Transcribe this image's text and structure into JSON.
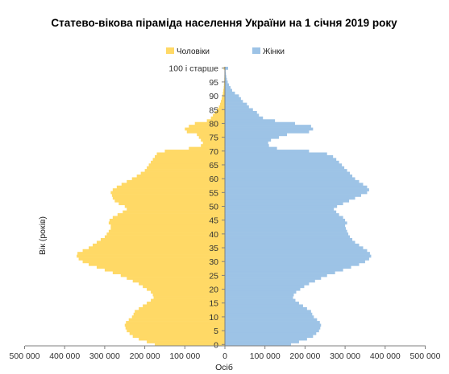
{
  "chart_data": {
    "type": "bar",
    "orientation": "horizontal",
    "title": "Статево-вікова піраміда населення України на 1 січня 2019 року",
    "xlabel": "Осіб",
    "ylabel": "Вік (років)",
    "xlim": [
      -500000,
      500000
    ],
    "x_ticks": [
      -500000,
      -400000,
      -300000,
      -200000,
      -100000,
      0,
      100000,
      200000,
      300000,
      400000,
      500000
    ],
    "x_tick_labels": [
      "500 000",
      "400 000",
      "300 000",
      "200 000",
      "100 000",
      "0",
      "100 000",
      "200 000",
      "300 000",
      "400 000",
      "500 000"
    ],
    "y_tick_ages": [
      0,
      5,
      10,
      15,
      20,
      25,
      30,
      35,
      40,
      45,
      50,
      55,
      60,
      65,
      70,
      75,
      80,
      85,
      90,
      95,
      100
    ],
    "y_tick_labels": [
      "0",
      "5",
      "10",
      "15",
      "20",
      "25",
      "30",
      "35",
      "40",
      "45",
      "50",
      "55",
      "60",
      "65",
      "70",
      "75",
      "80",
      "85",
      "90",
      "95",
      "100 і старше"
    ],
    "legend_position": "top-center",
    "grid": false,
    "ages": [
      0,
      1,
      2,
      3,
      4,
      5,
      6,
      7,
      8,
      9,
      10,
      11,
      12,
      13,
      14,
      15,
      16,
      17,
      18,
      19,
      20,
      21,
      22,
      23,
      24,
      25,
      26,
      27,
      28,
      29,
      30,
      31,
      32,
      33,
      34,
      35,
      36,
      37,
      38,
      39,
      40,
      41,
      42,
      43,
      44,
      45,
      46,
      47,
      48,
      49,
      50,
      51,
      52,
      53,
      54,
      55,
      56,
      57,
      58,
      59,
      60,
      61,
      62,
      63,
      64,
      65,
      66,
      67,
      68,
      69,
      70,
      71,
      72,
      73,
      74,
      75,
      76,
      77,
      78,
      79,
      80,
      81,
      82,
      83,
      84,
      85,
      86,
      87,
      88,
      89,
      90,
      91,
      92,
      93,
      94,
      95,
      96,
      97,
      98,
      99,
      100
    ],
    "series": [
      {
        "name": "Чоловіки",
        "color": "#FFD966",
        "values": [
          175000,
          195000,
          215000,
          230000,
          238000,
          245000,
          248000,
          250000,
          247000,
          240000,
          232000,
          228000,
          225000,
          215000,
          205000,
          195000,
          185000,
          178000,
          180000,
          185000,
          195000,
          205000,
          215000,
          230000,
          245000,
          260000,
          280000,
          300000,
          320000,
          340000,
          355000,
          365000,
          370000,
          368000,
          355000,
          340000,
          330000,
          320000,
          310000,
          300000,
          295000,
          290000,
          285000,
          285000,
          290000,
          288000,
          280000,
          268000,
          255000,
          245000,
          250000,
          265000,
          275000,
          280000,
          282000,
          285000,
          280000,
          270000,
          258000,
          245000,
          232000,
          220000,
          210000,
          200000,
          195000,
          190000,
          185000,
          180000,
          175000,
          170000,
          150000,
          90000,
          60000,
          55000,
          60000,
          65000,
          70000,
          95000,
          100000,
          90000,
          75000,
          45000,
          35000,
          30000,
          25000,
          20000,
          15000,
          12000,
          10000,
          8000,
          6000,
          5000,
          4000,
          3000,
          2500,
          2000,
          1500,
          1200,
          1000,
          800,
          3000
        ]
      },
      {
        "name": "Жінки",
        "color": "#9DC3E6",
        "values": [
          165000,
          185000,
          205000,
          220000,
          228000,
          235000,
          238000,
          240000,
          237000,
          230000,
          222000,
          218000,
          215000,
          205000,
          195000,
          185000,
          176000,
          170000,
          172000,
          178000,
          188000,
          198000,
          210000,
          225000,
          240000,
          255000,
          275000,
          295000,
          315000,
          335000,
          350000,
          360000,
          365000,
          362000,
          355000,
          345000,
          335000,
          325000,
          318000,
          312000,
          308000,
          305000,
          302000,
          300000,
          305000,
          300000,
          295000,
          285000,
          278000,
          272000,
          280000,
          295000,
          310000,
          325000,
          340000,
          355000,
          360000,
          355000,
          345000,
          335000,
          325000,
          318000,
          312000,
          305000,
          298000,
          292000,
          285000,
          278000,
          270000,
          255000,
          210000,
          130000,
          110000,
          108000,
          115000,
          135000,
          155000,
          210000,
          220000,
          215000,
          175000,
          125000,
          95000,
          85000,
          80000,
          70000,
          60000,
          55000,
          45000,
          40000,
          35000,
          25000,
          18000,
          14000,
          10000,
          7000,
          5000,
          3500,
          2500,
          1800,
          8000
        ]
      }
    ]
  }
}
